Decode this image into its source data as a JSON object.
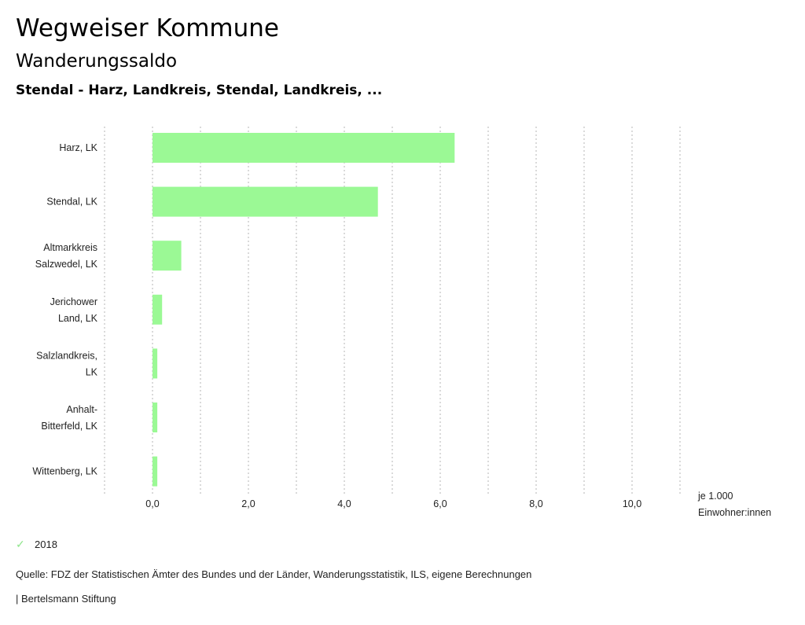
{
  "header": {
    "title": "Wegweiser Kommune",
    "subtitle": "Wanderungssaldo",
    "region": "Stendal - Harz, Landkreis, Stendal, Landkreis, ..."
  },
  "chart_data": {
    "type": "bar",
    "orientation": "horizontal",
    "title": "Wanderungssaldo",
    "categories": [
      [
        "Harz, LK"
      ],
      [
        "Stendal, LK"
      ],
      [
        "Altmarkkreis",
        "Salzwedel, LK"
      ],
      [
        "Jerichower",
        "Land, LK"
      ],
      [
        "Salzlandkreis,",
        "LK"
      ],
      [
        "Anhalt-",
        "Bitterfeld, LK"
      ],
      [
        "Wittenberg, LK"
      ]
    ],
    "series": [
      {
        "name": "2018",
        "color": "#9bf995",
        "values": [
          6.3,
          4.7,
          0.6,
          0.2,
          0.1,
          0.1,
          0.1
        ]
      }
    ],
    "xlim": [
      -1,
      11
    ],
    "xticks": [
      {
        "value": 0,
        "label": "0,0"
      },
      {
        "value": 2,
        "label": "2,0"
      },
      {
        "value": 4,
        "label": "4,0"
      },
      {
        "value": 6,
        "label": "6,0"
      },
      {
        "value": 8,
        "label": "8,0"
      },
      {
        "value": 10,
        "label": "10,0"
      }
    ],
    "gridlines": [
      -1,
      0,
      1,
      2,
      3,
      4,
      5,
      6,
      7,
      8,
      9,
      10,
      11
    ],
    "xlabel": [
      "je 1.000",
      "Einwohner:innen"
    ],
    "grid": true,
    "legend_position": "bottom-left"
  },
  "legend": {
    "items": [
      {
        "label": "2018",
        "icon": "check-icon",
        "color": "#8fe58c"
      }
    ]
  },
  "footer": {
    "source": "Quelle: FDZ der Statistischen Ämter des Bundes und der Länder, Wanderungsstatistik, ILS, eigene Berechnungen",
    "credit": "| Bertelsmann Stiftung"
  }
}
